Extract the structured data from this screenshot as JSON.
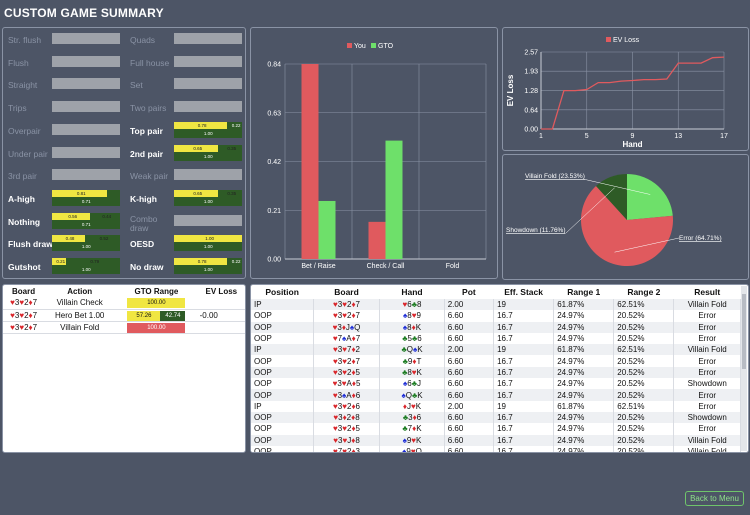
{
  "title": "CUSTOM GAME SUMMARY",
  "hand_strength": {
    "left": [
      {
        "label": "Str. flush",
        "active": false
      },
      {
        "label": "Flush",
        "active": false
      },
      {
        "label": "Straight",
        "active": false
      },
      {
        "label": "Trips",
        "active": false
      },
      {
        "label": "Overpair",
        "active": false
      },
      {
        "label": "Under pair",
        "active": false
      },
      {
        "label": "3rd pair",
        "active": false
      },
      {
        "label": "A-high",
        "active": true,
        "top_a": "0.81",
        "top_b": "",
        "bottom": "0.71"
      },
      {
        "label": "Nothing",
        "active": true,
        "top_a": "0.56",
        "top_b": "0.44",
        "bottom": "0.71"
      },
      {
        "label": "Flush draw",
        "active": true,
        "top_a": "0.48",
        "top_b": "0.52",
        "bottom": "1.00"
      },
      {
        "label": "Gutshot",
        "active": true,
        "top_a": "0.21",
        "top_b": "0.79",
        "bottom": "1.00"
      }
    ],
    "right": [
      {
        "label": "Quads",
        "active": false
      },
      {
        "label": "Full house",
        "active": false
      },
      {
        "label": "Set",
        "active": false
      },
      {
        "label": "Two pairs",
        "active": false
      },
      {
        "label": "Top pair",
        "active": true,
        "top_a": "0.78",
        "top_b": "0.22",
        "bottom": "1.00"
      },
      {
        "label": "2nd pair",
        "active": true,
        "top_a": "0.65",
        "top_b": "0.35",
        "bottom": "1.00"
      },
      {
        "label": "Weak pair",
        "active": false
      },
      {
        "label": "K-high",
        "active": true,
        "top_a": "0.65",
        "top_b": "0.35",
        "bottom": "1.00"
      },
      {
        "label": "Combo draw",
        "active": false
      },
      {
        "label": "OESD",
        "active": true,
        "top_a": "1.00",
        "top_b": "",
        "bottom": "1.00"
      },
      {
        "label": "No draw",
        "active": true,
        "top_a": "0.78",
        "top_b": "0.22",
        "bottom": "1.00"
      }
    ]
  },
  "chart_data": [
    {
      "type": "bar",
      "categories": [
        "Bet / Raise",
        "Check / Call",
        "Fold"
      ],
      "series": [
        {
          "name": "You",
          "values": [
            0.84,
            0.16,
            0.0
          ],
          "color": "#e05a5e"
        },
        {
          "name": "GTO",
          "values": [
            0.25,
            0.51,
            0.0
          ],
          "color": "#6ee06a"
        }
      ],
      "ylim": [
        0,
        0.84
      ],
      "yticks": [
        "0.00",
        "0.21",
        "0.42",
        "0.63",
        "0.84"
      ],
      "legend": "top-center",
      "grid": true
    },
    {
      "type": "line",
      "series": [
        {
          "name": "EV Loss",
          "color": "#e05a5e",
          "x": [
            1,
            2,
            3,
            4,
            5,
            6,
            7,
            8,
            9,
            10,
            11,
            12,
            13,
            14,
            15,
            16,
            17
          ],
          "y": [
            0.0,
            0.0,
            1.28,
            1.28,
            1.32,
            1.55,
            1.55,
            1.6,
            1.62,
            1.65,
            1.65,
            1.67,
            2.2,
            2.2,
            2.2,
            2.38,
            2.4
          ]
        }
      ],
      "xlabel": "Hand",
      "ylabel": "EV Loss",
      "xlim": [
        1,
        17
      ],
      "ylim": [
        0,
        2.57
      ],
      "xticks": [
        "1",
        "5",
        "9",
        "13",
        "17"
      ],
      "yticks": [
        "0.00",
        "0.64",
        "1.28",
        "1.93",
        "2.57"
      ],
      "legend": "top-center",
      "grid": true
    },
    {
      "type": "pie",
      "slices": [
        {
          "label": "Error (64.71%)",
          "value": 64.71,
          "color": "#e05a5e"
        },
        {
          "label": "Showdown (11.76%)",
          "value": 11.76,
          "color": "#2e5b26"
        },
        {
          "label": "Villain Fold (23.53%)",
          "value": 23.53,
          "color": "#6ee06a"
        }
      ]
    }
  ],
  "summary": {
    "headers": [
      "Board",
      "Action",
      "GTO Range",
      "EV Loss"
    ],
    "rows": [
      {
        "board": "♥3♥2♦7",
        "action": "Villain Check",
        "gto_a": "100.00",
        "gto_b": "",
        "ev": "",
        "style": "yellow"
      },
      {
        "board": "♥3♥2♦7",
        "action": "Hero Bet 1.00",
        "gto_a": "57.26",
        "gto_b": "42.74",
        "ev": "-0.00",
        "style": "split"
      },
      {
        "board": "♥3♥2♦7",
        "action": "Villain Fold",
        "gto_a": "100.00",
        "gto_b": "",
        "ev": "",
        "style": "red"
      }
    ]
  },
  "hands": {
    "headers": [
      "Position",
      "Board",
      "Hand",
      "Pot",
      "Eff. Stack",
      "Range 1",
      "Range 2",
      "Result"
    ],
    "rows": [
      [
        "IP",
        "♥3♥2♦7",
        "♥6♣8",
        "2.00",
        "19",
        "61.87%",
        "62.51%",
        "Villain Fold"
      ],
      [
        "OOP",
        "♥3♥2♦7",
        "♠8♥9",
        "6.60",
        "16.7",
        "24.97%",
        "20.52%",
        "Error"
      ],
      [
        "OOP",
        "♥3♦J♠Q",
        "♠8♦K",
        "6.60",
        "16.7",
        "24.97%",
        "20.52%",
        "Error"
      ],
      [
        "OOP",
        "♥7♠A♦7",
        "♣5♣6",
        "6.60",
        "16.7",
        "24.97%",
        "20.52%",
        "Error"
      ],
      [
        "IP",
        "♥3♥7♦2",
        "♣Q♠K",
        "2.00",
        "19",
        "61.87%",
        "62.51%",
        "Villain Fold"
      ],
      [
        "OOP",
        "♥3♥2♦7",
        "♣9♦T",
        "6.60",
        "16.7",
        "24.97%",
        "20.52%",
        "Error"
      ],
      [
        "OOP",
        "♥3♥2♦5",
        "♣8♥K",
        "6.60",
        "16.7",
        "24.97%",
        "20.52%",
        "Error"
      ],
      [
        "OOP",
        "♥3♥A♦5",
        "♠6♣J",
        "6.60",
        "16.7",
        "24.97%",
        "20.52%",
        "Showdown"
      ],
      [
        "OOP",
        "♥3♠A♦6",
        "♠Q♣K",
        "6.60",
        "16.7",
        "24.97%",
        "20.52%",
        "Error"
      ],
      [
        "IP",
        "♥3♥2♦6",
        "♦J♥K",
        "2.00",
        "19",
        "61.87%",
        "62.51%",
        "Error"
      ],
      [
        "OOP",
        "♥3♦2♦8",
        "♣3♦6",
        "6.60",
        "16.7",
        "24.97%",
        "20.52%",
        "Showdown"
      ],
      [
        "OOP",
        "♥3♥2♦5",
        "♣7♦K",
        "6.60",
        "16.7",
        "24.97%",
        "20.52%",
        "Error"
      ],
      [
        "OOP",
        "♥3♥J♦8",
        "♠9♥K",
        "6.60",
        "16.7",
        "24.97%",
        "20.52%",
        "Villain Fold"
      ],
      [
        "OOP",
        "♥7♥2♦3",
        "♠9♥Q",
        "6.60",
        "16.7",
        "24.97%",
        "20.52%",
        "Villain Fold"
      ],
      [
        "IP",
        "♥3♥2♦7",
        "♥6♦K",
        "2.00",
        "19",
        "61.87%",
        "62.51%",
        "Error"
      ],
      [
        "IP",
        "♥3♥2♦8",
        "♠2♣9",
        "2.00",
        "19",
        "61.87%",
        "62.51%",
        "Villain Fold"
      ]
    ]
  },
  "back_button": "Back to Menu",
  "colors": {
    "red": "#e05a5e",
    "green": "#6ee06a",
    "dark_green": "#2e5b26",
    "yellow": "#f0e642",
    "panel_bg": "#4d5566"
  }
}
